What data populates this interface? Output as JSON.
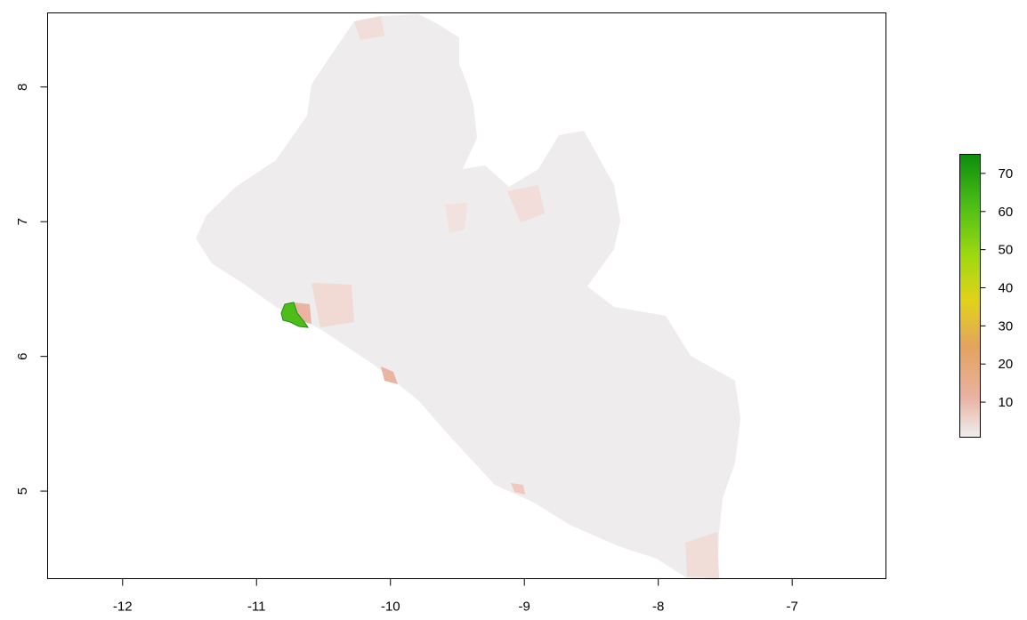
{
  "map": {
    "x_ticks": [
      "-12",
      "-11",
      "-10",
      "-9",
      "-8",
      "-7"
    ],
    "x_tick_values": [
      -12,
      -11,
      -10,
      -9,
      -8,
      -7
    ],
    "y_ticks": [
      "5",
      "6",
      "7",
      "8"
    ],
    "y_tick_values": [
      5,
      6,
      7,
      8
    ],
    "xlim": [
      -12.56,
      -6.3
    ],
    "ylim": [
      4.35,
      8.55
    ],
    "fill_colors": {
      "base": "#eeecec",
      "light_pink": "#f2dcd8",
      "salmon": "#ebb4a2",
      "green": "#4cbe17",
      "dark_green": "#1f8a10"
    }
  },
  "legend": {
    "labels": [
      "10",
      "20",
      "30",
      "40",
      "50",
      "60",
      "70"
    ],
    "values": [
      10,
      20,
      30,
      40,
      50,
      60,
      70
    ],
    "range": [
      0.8,
      75
    ],
    "colors": [
      "#efefef",
      "#e9b2a2",
      "#e3a35e",
      "#e2d21a",
      "#9fd90f",
      "#4cbe16",
      "#0c8d0d"
    ]
  }
}
